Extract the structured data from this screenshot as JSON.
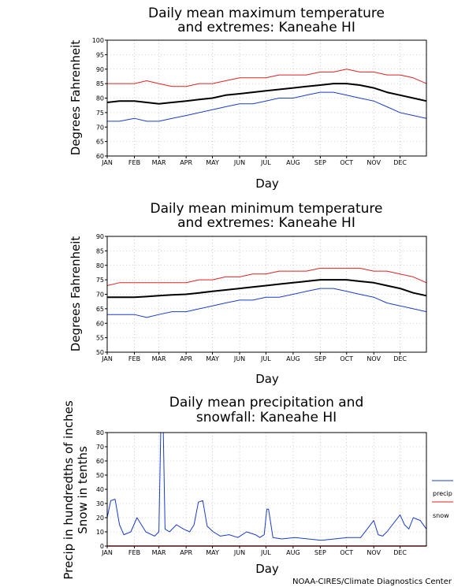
{
  "colors": {
    "max_line": "#dd2222",
    "min_line": "#1a3ccc",
    "mean_line": "#000000",
    "precip": "#1a3ccc",
    "snow": "#dd2222",
    "grid": "#aaaaaa"
  },
  "footer": {
    "credit": "NOAA-CIRES/Climate Diagnostics Center"
  },
  "legend": {
    "precip": "precip",
    "snow": "snow"
  },
  "chart_data": [
    {
      "type": "line",
      "title_line1": "Daily mean maximum temperature",
      "title_line2": "and extremes: Kaneahe HI",
      "xlabel": "Day",
      "ylabel": "Degrees Fahrenheit",
      "ylim": [
        60,
        100
      ],
      "yticks": [
        "60",
        "65",
        "70",
        "75",
        "80",
        "85",
        "90",
        "95",
        "100"
      ],
      "months": [
        "JAN",
        "FEB",
        "MAR",
        "APR",
        "MAY",
        "JUN",
        "JUL",
        "AUG",
        "SEP",
        "OCT",
        "NOV",
        "DEC"
      ],
      "grid": true,
      "x": [
        1,
        15,
        32,
        46,
        60,
        75,
        91,
        106,
        121,
        136,
        152,
        167,
        182,
        197,
        213,
        228,
        244,
        259,
        274,
        289,
        305,
        320,
        335,
        350,
        365
      ],
      "series": [
        {
          "values": [
            85,
            85,
            85,
            86,
            85,
            84,
            84,
            85,
            85,
            86,
            87,
            87,
            87,
            88,
            88,
            88,
            89,
            89,
            90,
            89,
            89,
            88,
            88,
            87,
            85
          ]
        },
        {
          "values": [
            78.5,
            79,
            79,
            78.5,
            78,
            78.5,
            79,
            79.5,
            80,
            81,
            81.5,
            82,
            82.5,
            83,
            83.5,
            84,
            84.5,
            85,
            85,
            84.5,
            83.5,
            82,
            81,
            80,
            79
          ]
        },
        {
          "values": [
            72,
            72,
            73,
            72,
            72,
            73,
            74,
            75,
            76,
            77,
            78,
            78,
            79,
            80,
            80,
            81,
            82,
            82,
            81,
            80,
            79,
            77,
            75,
            74,
            73
          ]
        }
      ]
    },
    {
      "type": "line",
      "title_line1": "Daily mean minimum temperature",
      "title_line2": "and extremes: Kaneahe HI",
      "xlabel": "Day",
      "ylabel": "Degrees Fahrenheit",
      "ylim": [
        50,
        90
      ],
      "yticks": [
        "50",
        "55",
        "60",
        "65",
        "70",
        "75",
        "80",
        "85",
        "90"
      ],
      "months": [
        "JAN",
        "FEB",
        "MAR",
        "APR",
        "MAY",
        "JUN",
        "JUL",
        "AUG",
        "SEP",
        "OCT",
        "NOV",
        "DEC"
      ],
      "grid": true,
      "x": [
        1,
        15,
        32,
        46,
        60,
        75,
        91,
        106,
        121,
        136,
        152,
        167,
        182,
        197,
        213,
        228,
        244,
        259,
        274,
        289,
        305,
        320,
        335,
        350,
        365
      ],
      "series": [
        {
          "values": [
            73,
            74,
            74,
            74,
            74,
            74,
            74,
            75,
            75,
            76,
            76,
            77,
            77,
            78,
            78,
            78,
            79,
            79,
            79,
            79,
            78,
            78,
            77,
            76,
            74
          ]
        },
        {
          "values": [
            69,
            69,
            69,
            69.2,
            69.5,
            69.8,
            70,
            70.5,
            71,
            71.5,
            72,
            72.5,
            73,
            73.5,
            74,
            74.5,
            75,
            75,
            75,
            74.5,
            74,
            73,
            72,
            70.5,
            69.5
          ]
        },
        {
          "values": [
            63,
            63,
            63,
            62,
            63,
            64,
            64,
            65,
            66,
            67,
            68,
            68,
            69,
            69,
            70,
            71,
            72,
            72,
            71,
            70,
            69,
            67,
            66,
            65,
            64
          ]
        }
      ]
    },
    {
      "type": "line",
      "title_line1": "Daily mean precipitation and",
      "title_line2": "snowfall: Kaneahe HI",
      "xlabel": "Day",
      "ylabel_line1": "Precip in hundredths of inches",
      "ylabel_line2": "Snow in tenths",
      "ylim": [
        0,
        80
      ],
      "yticks": [
        "0",
        "10",
        "20",
        "30",
        "40",
        "50",
        "60",
        "70",
        "80"
      ],
      "months": [
        "JAN",
        "FEB",
        "MAR",
        "APR",
        "MAY",
        "JUN",
        "JUL",
        "AUG",
        "SEP",
        "OCT",
        "NOV",
        "DEC"
      ],
      "grid": true,
      "x": [
        1,
        5,
        10,
        15,
        20,
        28,
        35,
        45,
        55,
        60,
        62,
        65,
        67,
        72,
        80,
        88,
        95,
        100,
        105,
        110,
        115,
        122,
        130,
        140,
        150,
        160,
        170,
        175,
        180,
        183,
        185,
        190,
        200,
        215,
        230,
        245,
        260,
        275,
        290,
        305,
        310,
        315,
        320,
        335,
        340,
        345,
        350,
        358,
        365
      ],
      "series": [
        {
          "name": "precip",
          "values": [
            20,
            32,
            33,
            15,
            8,
            10,
            20,
            10,
            7,
            10,
            80,
            80,
            12,
            10,
            15,
            12,
            10,
            15,
            31,
            32,
            14,
            10,
            7,
            8,
            6,
            10,
            8,
            6,
            8,
            26,
            26,
            6,
            5,
            6,
            5,
            4,
            5,
            6,
            6,
            18,
            8,
            7,
            10,
            22,
            15,
            12,
            20,
            18,
            12
          ]
        },
        {
          "name": "snow",
          "values": [
            0,
            0,
            0,
            0,
            0,
            0,
            0,
            0,
            0,
            0,
            0,
            0,
            0,
            0,
            0,
            0,
            0,
            0,
            0,
            0,
            0,
            0,
            0,
            0,
            0,
            0,
            0,
            0,
            0,
            0,
            0,
            0,
            0,
            0,
            0,
            0,
            0,
            0,
            0,
            0,
            0,
            0,
            0,
            0,
            0,
            0,
            0,
            0,
            0
          ]
        }
      ]
    }
  ]
}
